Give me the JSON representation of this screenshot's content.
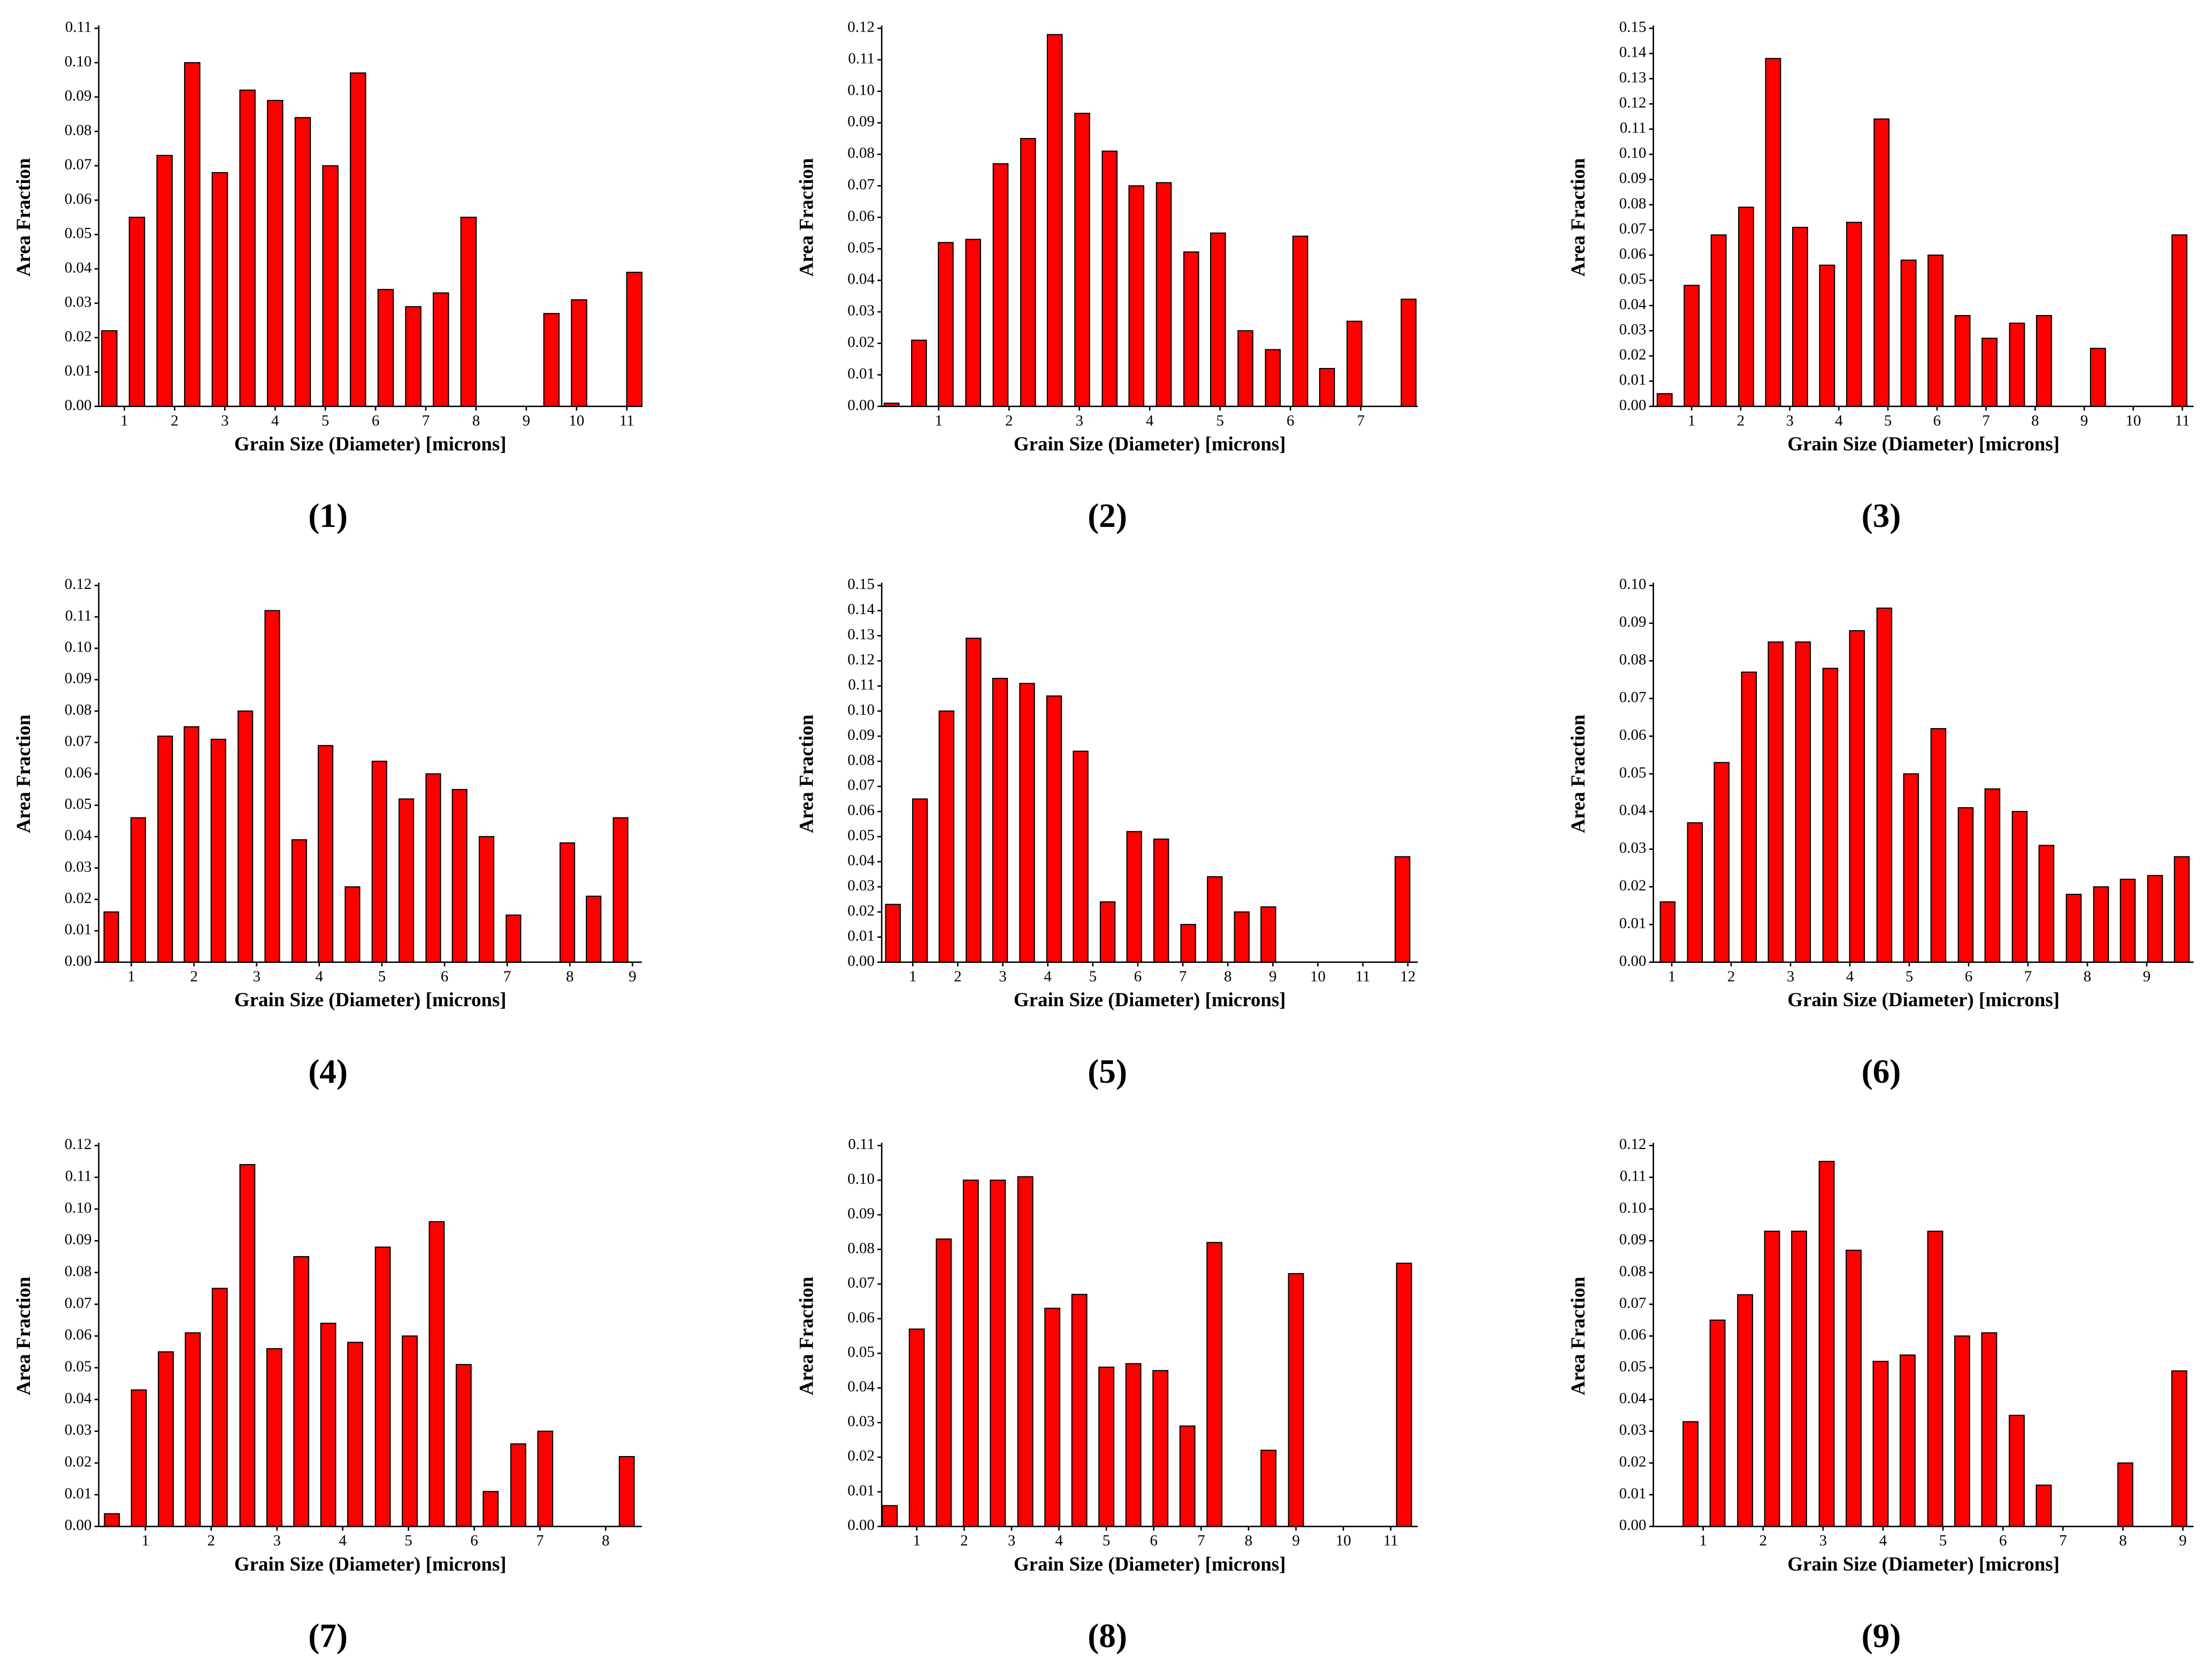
{
  "chart_data": [
    {
      "type": "bar",
      "label": "(1)",
      "x_label": "Grain Size (Diameter) [microns]",
      "y_label": "Area Fraction",
      "color": "#ff0000",
      "x": [
        0.7,
        1.25,
        1.8,
        2.35,
        2.9,
        3.45,
        4.0,
        4.55,
        5.1,
        5.65,
        6.2,
        6.75,
        7.3,
        7.85,
        9.5,
        10.05,
        11.15
      ],
      "values": [
        0.022,
        0.055,
        0.073,
        0.1,
        0.068,
        0.092,
        0.089,
        0.084,
        0.07,
        0.097,
        0.034,
        0.029,
        0.033,
        0.055,
        0.027,
        0.031,
        0.039
      ],
      "xlim": [
        0.49,
        11.3
      ],
      "xticks": [
        1,
        2,
        3,
        4,
        5,
        6,
        7,
        8,
        9,
        10,
        11
      ],
      "ylim": [
        0,
        0.11
      ],
      "yticks": [
        {
          "value": 0,
          "label": "0.00"
        },
        0.01,
        0.02,
        0.03,
        0.04,
        0.05,
        0.06,
        0.07,
        0.08,
        0.09,
        {
          "value": 0.1,
          "label": "0.10"
        },
        0.11
      ]
    },
    {
      "type": "bar",
      "label": "(2)",
      "x_label": "Grain Size (Diameter) [microns]",
      "y_label": "Area Fraction",
      "color": "#ff0000",
      "x": [
        0.33,
        0.72,
        1.1,
        1.49,
        1.88,
        2.27,
        2.65,
        3.04,
        3.43,
        3.81,
        4.2,
        4.59,
        4.97,
        5.36,
        5.75,
        6.14,
        6.52,
        6.91,
        7.68
      ],
      "values": [
        0.001,
        0.021,
        0.052,
        0.053,
        0.077,
        0.085,
        0.118,
        0.093,
        0.081,
        0.07,
        0.071,
        0.049,
        0.055,
        0.024,
        0.018,
        0.054,
        0.012,
        0.027,
        0.034
      ],
      "xlim": [
        0.19,
        7.81
      ],
      "xticks": [
        1,
        2,
        3,
        4,
        5,
        6,
        7
      ],
      "ylim": [
        0,
        0.12
      ],
      "yticks": [
        {
          "value": 0,
          "label": "0.00"
        },
        0.01,
        0.02,
        0.03,
        0.04,
        0.05,
        0.06,
        0.07,
        0.08,
        0.09,
        {
          "value": 0.1,
          "label": "0.10"
        },
        0.11,
        0.12
      ]
    },
    {
      "type": "bar",
      "label": "(3)",
      "x_label": "Grain Size (Diameter) [microns]",
      "y_label": "Area Fraction",
      "color": "#ff0000",
      "x": [
        0.45,
        1.0,
        1.55,
        2.11,
        2.66,
        3.21,
        3.76,
        4.31,
        4.87,
        5.42,
        5.97,
        6.52,
        7.07,
        7.63,
        8.18,
        9.28,
        10.94
      ],
      "values": [
        0.005,
        0.048,
        0.068,
        0.079,
        0.138,
        0.071,
        0.056,
        0.073,
        0.114,
        0.058,
        0.06,
        0.036,
        0.027,
        0.033,
        0.036,
        0.023,
        0.068
      ],
      "xlim": [
        0.22,
        11.23
      ],
      "xticks": [
        1,
        2,
        3,
        4,
        5,
        6,
        7,
        8,
        9,
        10,
        11
      ],
      "ylim": [
        0,
        0.15
      ],
      "yticks": [
        {
          "value": 0,
          "label": "0.00"
        },
        0.01,
        0.02,
        0.03,
        0.04,
        0.05,
        0.06,
        0.07,
        0.08,
        0.09,
        {
          "value": 0.1,
          "label": "0.10"
        },
        0.11,
        0.12,
        0.13,
        0.14,
        0.15
      ]
    },
    {
      "type": "bar",
      "label": "(4)",
      "x_label": "Grain Size (Diameter) [microns]",
      "y_label": "Area Fraction",
      "color": "#ff0000",
      "x": [
        0.68,
        1.11,
        1.54,
        1.96,
        2.39,
        2.82,
        3.25,
        3.68,
        4.1,
        4.53,
        4.96,
        5.39,
        5.82,
        6.24,
        6.67,
        7.1,
        7.96,
        8.38,
        8.81
      ],
      "values": [
        0.016,
        0.046,
        0.072,
        0.075,
        0.071,
        0.08,
        0.112,
        0.039,
        0.069,
        0.024,
        0.064,
        0.052,
        0.06,
        0.055,
        0.04,
        0.015,
        0.038,
        0.021,
        0.046
      ],
      "xlim": [
        0.48,
        9.15
      ],
      "xticks": [
        1,
        2,
        3,
        4,
        5,
        6,
        7,
        8,
        9
      ],
      "ylim": [
        0,
        0.12
      ],
      "yticks": [
        {
          "value": 0,
          "label": "0.00"
        },
        0.01,
        0.02,
        0.03,
        0.04,
        0.05,
        0.06,
        0.07,
        0.08,
        0.09,
        {
          "value": 0.1,
          "label": "0.10"
        },
        0.11,
        0.12
      ]
    },
    {
      "type": "bar",
      "label": "(5)",
      "x_label": "Grain Size (Diameter) [microns]",
      "y_label": "Area Fraction",
      "color": "#ff0000",
      "x": [
        0.56,
        1.16,
        1.75,
        2.35,
        2.94,
        3.54,
        4.14,
        4.73,
        5.33,
        5.92,
        6.52,
        7.12,
        7.71,
        8.31,
        8.9,
        11.88
      ],
      "values": [
        0.023,
        0.065,
        0.1,
        0.129,
        0.113,
        0.111,
        0.106,
        0.084,
        0.024,
        0.052,
        0.049,
        0.015,
        0.034,
        0.02,
        0.022,
        0.042
      ],
      "xlim": [
        0.31,
        12.22
      ],
      "xticks": [
        1,
        2,
        3,
        4,
        5,
        6,
        7,
        8,
        9,
        10,
        11,
        12
      ],
      "ylim": [
        0,
        0.15
      ],
      "yticks": [
        {
          "value": 0,
          "label": "0.00"
        },
        0.01,
        0.02,
        0.03,
        0.04,
        0.05,
        0.06,
        0.07,
        0.08,
        0.09,
        {
          "value": 0.1,
          "label": "0.10"
        },
        0.11,
        0.12,
        0.13,
        0.14,
        0.15
      ]
    },
    {
      "type": "bar",
      "label": "(6)",
      "x_label": "Grain Size (Diameter) [microns]",
      "y_label": "Area Fraction",
      "color": "#ff0000",
      "x": [
        0.93,
        1.39,
        1.84,
        2.3,
        2.75,
        3.21,
        3.67,
        4.12,
        4.58,
        5.03,
        5.49,
        5.95,
        6.4,
        6.86,
        7.31,
        7.77,
        8.23,
        8.68,
        9.14,
        9.59
      ],
      "values": [
        0.016,
        0.037,
        0.053,
        0.077,
        0.085,
        0.085,
        0.078,
        0.088,
        0.094,
        0.05,
        0.062,
        0.041,
        0.046,
        0.04,
        0.031,
        0.018,
        0.02,
        0.022,
        0.023,
        0.028
      ],
      "xlim": [
        0.69,
        9.79
      ],
      "xticks": [
        1,
        2,
        3,
        4,
        5,
        6,
        7,
        8,
        9
      ],
      "ylim": [
        0,
        0.1
      ],
      "yticks": [
        {
          "value": 0,
          "label": "0.00"
        },
        0.01,
        0.02,
        0.03,
        0.04,
        0.05,
        0.06,
        0.07,
        0.08,
        0.09,
        {
          "value": 0.1,
          "label": "0.10"
        }
      ]
    },
    {
      "type": "bar",
      "label": "(7)",
      "x_label": "Grain Size (Diameter) [microns]",
      "y_label": "Area Fraction",
      "color": "#ff0000",
      "x": [
        0.49,
        0.9,
        1.31,
        1.72,
        2.13,
        2.55,
        2.96,
        3.37,
        3.78,
        4.19,
        4.61,
        5.02,
        5.43,
        5.84,
        6.25,
        6.67,
        7.08,
        8.32
      ],
      "values": [
        0.004,
        0.043,
        0.055,
        0.061,
        0.075,
        0.114,
        0.056,
        0.085,
        0.064,
        0.058,
        0.088,
        0.06,
        0.096,
        0.051,
        0.011,
        0.026,
        0.03,
        0.022
      ],
      "xlim": [
        0.29,
        8.55
      ],
      "xticks": [
        1,
        2,
        3,
        4,
        5,
        6,
        7,
        8
      ],
      "ylim": [
        0,
        0.12
      ],
      "yticks": [
        {
          "value": 0,
          "label": "0.00"
        },
        0.01,
        0.02,
        0.03,
        0.04,
        0.05,
        0.06,
        0.07,
        0.08,
        0.09,
        {
          "value": 0.1,
          "label": "0.10"
        },
        0.11,
        0.12
      ]
    },
    {
      "type": "bar",
      "label": "(8)",
      "x_label": "Grain Size (Diameter) [microns]",
      "y_label": "Area Fraction",
      "color": "#ff0000",
      "x": [
        0.43,
        1.0,
        1.57,
        2.14,
        2.71,
        3.29,
        3.86,
        4.43,
        5.0,
        5.57,
        6.14,
        6.71,
        7.28,
        8.42,
        9.0,
        11.28
      ],
      "values": [
        0.006,
        0.057,
        0.083,
        0.1,
        0.1,
        0.101,
        0.063,
        0.067,
        0.046,
        0.047,
        0.045,
        0.029,
        0.082,
        0.022,
        0.073,
        0.076
      ],
      "xlim": [
        0.26,
        11.57
      ],
      "xticks": [
        1,
        2,
        3,
        4,
        5,
        6,
        7,
        8,
        9,
        10,
        11
      ],
      "ylim": [
        0,
        0.11
      ],
      "yticks": [
        {
          "value": 0,
          "label": "0.00"
        },
        0.01,
        0.02,
        0.03,
        0.04,
        0.05,
        0.06,
        0.07,
        0.08,
        0.09,
        {
          "value": 0.1,
          "label": "0.10"
        },
        0.11
      ]
    },
    {
      "type": "bar",
      "label": "(9)",
      "x_label": "Grain Size (Diameter) [microns]",
      "y_label": "Area Fraction",
      "color": "#ff0000",
      "x": [
        0.79,
        1.24,
        1.7,
        2.15,
        2.6,
        3.06,
        3.51,
        3.96,
        4.41,
        4.87,
        5.32,
        5.77,
        6.23,
        6.68,
        8.04,
        8.94
      ],
      "values": [
        0.033,
        0.065,
        0.073,
        0.093,
        0.093,
        0.115,
        0.087,
        0.052,
        0.054,
        0.093,
        0.06,
        0.061,
        0.035,
        0.013,
        0.02,
        0.049
      ],
      "xlim": [
        0.17,
        9.18
      ],
      "xticks": [
        1,
        2,
        3,
        4,
        5,
        6,
        7,
        8,
        9
      ],
      "ylim": [
        0,
        0.12
      ],
      "yticks": [
        {
          "value": 0,
          "label": "0.00"
        },
        0.01,
        0.02,
        0.03,
        0.04,
        0.05,
        0.06,
        0.07,
        0.08,
        0.09,
        {
          "value": 0.1,
          "label": "0.10"
        },
        0.11,
        0.12
      ]
    }
  ]
}
